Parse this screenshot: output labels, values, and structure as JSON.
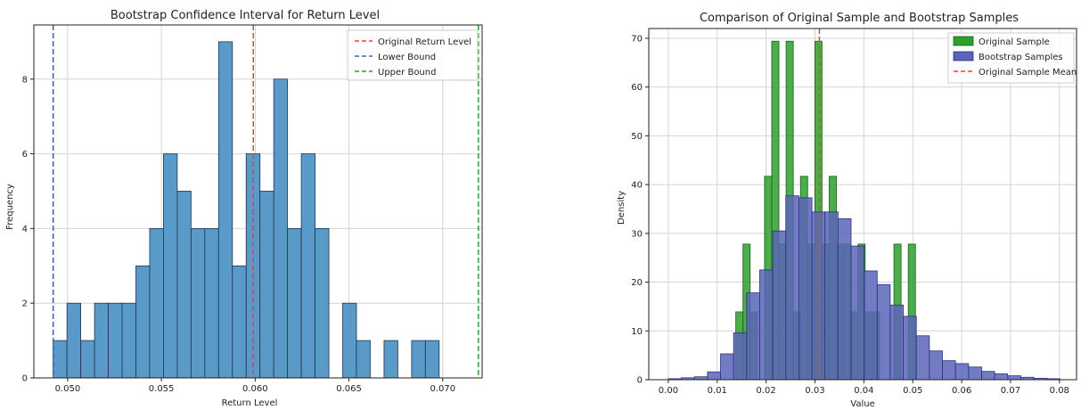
{
  "chart_data": [
    {
      "type": "bar",
      "title": "Bootstrap Confidence Interval for Return Level",
      "xlabel": "Return Level",
      "ylabel": "Frequency",
      "xlim": [
        0.0482,
        0.0721
      ],
      "ylim": [
        0,
        9.45
      ],
      "grid": true,
      "legend_placement": "top-right",
      "xticks": [
        0.05,
        0.055,
        0.06,
        0.065,
        0.07
      ],
      "xtick_labels": [
        "0.050",
        "0.055",
        "0.060",
        "0.065",
        "0.070"
      ],
      "yticks": [
        0,
        2,
        4,
        6,
        8
      ],
      "ytick_labels": [
        "0",
        "2",
        "4",
        "6",
        "8"
      ],
      "bar_color": "#5a9ac8",
      "bin_start": 0.04923,
      "bin_width": 0.000735,
      "values": [
        1,
        2,
        1,
        2,
        2,
        2,
        3,
        4,
        6,
        5,
        4,
        4,
        9,
        3,
        6,
        5,
        8,
        4,
        6,
        4,
        0,
        2,
        1,
        0,
        1,
        0,
        1,
        1
      ],
      "vlines": [
        {
          "name": "Original Return Level",
          "x": 0.0599,
          "color": "#e8452c"
        },
        {
          "name": "Lower Bound",
          "x": 0.04923,
          "color": "#3b5fd1"
        },
        {
          "name": "Upper Bound",
          "x": 0.0719,
          "color": "#2e9e3a"
        }
      ]
    },
    {
      "type": "bar",
      "title": "Comparison of Original Sample and Bootstrap Samples",
      "xlabel": "Value",
      "ylabel": "Density",
      "xlim": [
        -0.004,
        0.0835
      ],
      "ylim": [
        0,
        72
      ],
      "grid": true,
      "legend_placement": "top-right",
      "xticks": [
        0.0,
        0.01,
        0.02,
        0.03,
        0.04,
        0.05,
        0.06,
        0.07,
        0.08
      ],
      "xtick_labels": [
        "0.00",
        "0.01",
        "0.02",
        "0.03",
        "0.04",
        "0.05",
        "0.06",
        "0.07",
        "0.08"
      ],
      "yticks": [
        0,
        10,
        20,
        30,
        40,
        50,
        60,
        70
      ],
      "ytick_labels": [
        "0",
        "10",
        "20",
        "30",
        "40",
        "50",
        "60",
        "70"
      ],
      "series": [
        {
          "name": "Original Sample",
          "color": "#2ca02c",
          "bin_start": 0.0138,
          "bin_width": 0.00147,
          "values": [
            13.9,
            27.8,
            13.9,
            0,
            41.7,
            69.4,
            27.8,
            69.4,
            13.9,
            41.7,
            27.8,
            69.4,
            27.8,
            41.7,
            27.8,
            27.8,
            13.9,
            27.8,
            13.9,
            13.9,
            0,
            0,
            27.8,
            0,
            27.8
          ]
        },
        {
          "name": "Bootstrap Samples",
          "color": "#5a64b8",
          "bin_start": 0.0,
          "bin_width": 0.00267,
          "values": [
            0.2,
            0.4,
            0.6,
            1.6,
            5.3,
            9.6,
            17.8,
            22.5,
            30.5,
            37.7,
            37.3,
            34.4,
            34.4,
            33.0,
            27.4,
            22.3,
            19.5,
            15.3,
            13.0,
            9.0,
            5.9,
            3.9,
            3.3,
            2.6,
            1.7,
            1.2,
            0.8,
            0.5,
            0.3,
            0.2
          ]
        }
      ],
      "vlines": [
        {
          "name": "Original Sample Mean",
          "x": 0.0309,
          "color": "#e8452c"
        }
      ]
    }
  ]
}
